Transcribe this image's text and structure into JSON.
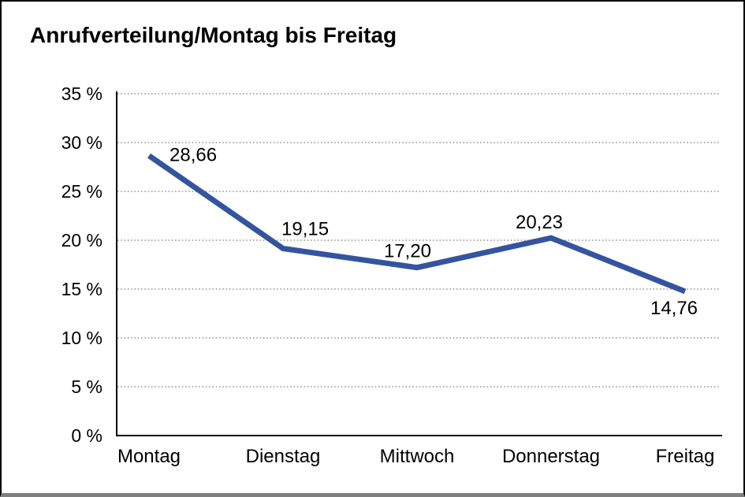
{
  "chart_data": {
    "type": "line",
    "title": "Anrufverteilung/Montag bis Freitag",
    "categories": [
      "Montag",
      "Dienstag",
      "Mittwoch",
      "Donnerstag",
      "Freitag"
    ],
    "series": [
      {
        "name": "Anrufverteilung",
        "values": [
          28.66,
          19.15,
          17.2,
          20.23,
          14.76
        ],
        "value_labels": [
          "28,66",
          "19,15",
          "17,20",
          "20,23",
          "14,76"
        ]
      }
    ],
    "xlabel": "",
    "ylabel": "",
    "ylim": [
      0,
      35
    ],
    "y_ticks": {
      "values": [
        0,
        5,
        10,
        15,
        20,
        25,
        30,
        35
      ],
      "labels": [
        "0 %",
        "5 %",
        "10 %",
        "15 %",
        "20 %",
        "25 %",
        "30 %",
        "35 %"
      ]
    },
    "grid": {
      "horizontal": true,
      "vertical": false,
      "style": "dotted"
    },
    "legend": "none",
    "colors": {
      "line": "#3454A0",
      "axis": "#000000",
      "grid": "#777777",
      "text": "#000000",
      "frame_border": "#000000",
      "frame_bottom_border": "#7f7f7f",
      "background": "#ffffff"
    }
  }
}
